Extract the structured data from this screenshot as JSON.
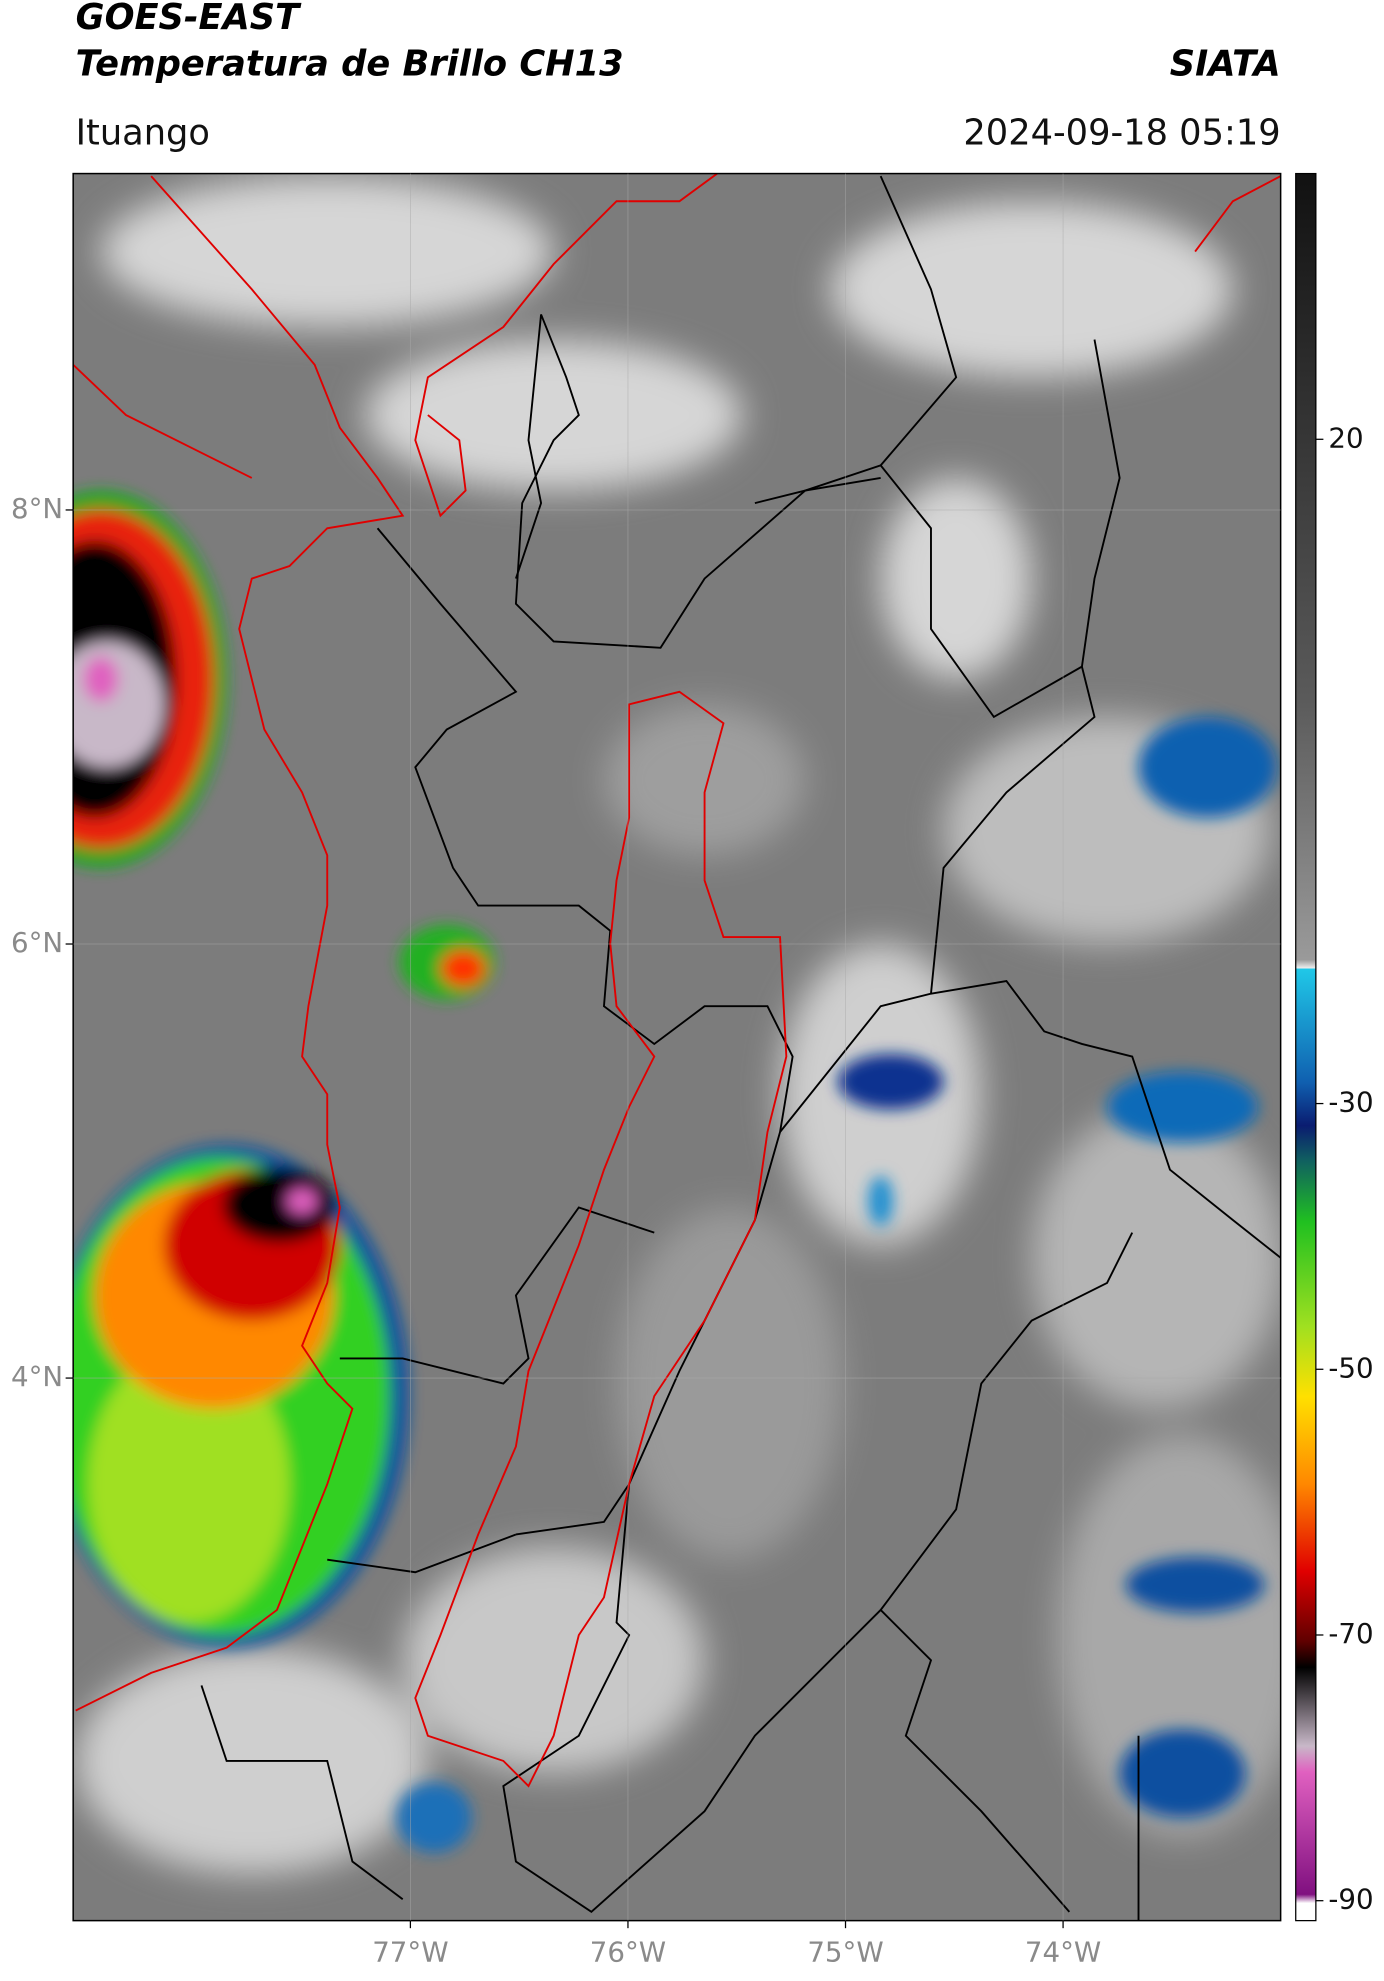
{
  "header": {
    "title": "GOES-EAST",
    "subtitle": "Temperatura de Brillo CH13",
    "agency": "SIATA",
    "location": "Ituango",
    "datetime": "2024-09-18 05:19"
  },
  "map": {
    "type": "map",
    "xlim": [
      -78.55,
      -73.0
    ],
    "ylim": [
      1.5,
      9.55
    ],
    "xticks": [
      {
        "value": -77,
        "label": "77°W"
      },
      {
        "value": -76,
        "label": "76°W"
      },
      {
        "value": -75,
        "label": "75°W"
      },
      {
        "value": -74,
        "label": "74°W"
      }
    ],
    "yticks": [
      {
        "value": 8,
        "label": "8°N"
      },
      {
        "value": 6,
        "label": "6°N"
      },
      {
        "value": 4,
        "label": "4°N"
      }
    ],
    "grid": true
  },
  "colorbar": {
    "lim": [
      -91.5,
      40
    ],
    "ticks": [
      20,
      -30,
      -50,
      -70,
      -90
    ]
  }
}
